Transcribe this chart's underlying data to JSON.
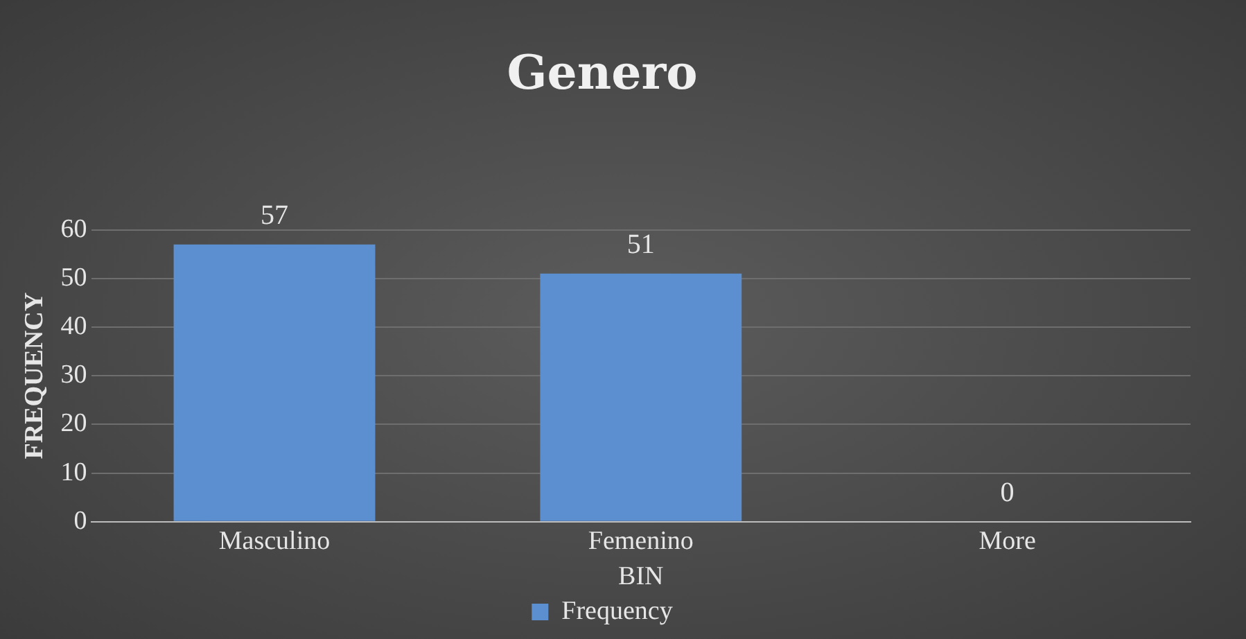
{
  "chart_data": {
    "type": "bar",
    "title": "Genero",
    "xlabel": "BIN",
    "ylabel": "FREQUENCY",
    "categories": [
      "Masculino",
      "Femenino",
      "More"
    ],
    "series": [
      {
        "name": "Frequency",
        "color": "#5b8fd0",
        "values": [
          57,
          51,
          0
        ]
      }
    ],
    "ylim": [
      0,
      60
    ],
    "yticks": [
      0,
      10,
      20,
      30,
      40,
      50,
      60
    ],
    "grid": "y",
    "legend": "bottom",
    "data_labels": true
  }
}
